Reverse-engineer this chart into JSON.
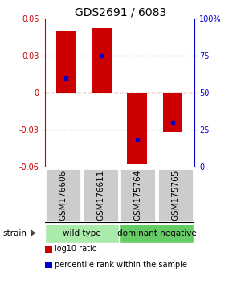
{
  "title": "GDS2691 / 6083",
  "samples": [
    "GSM176606",
    "GSM176611",
    "GSM175764",
    "GSM175765"
  ],
  "bar_values": [
    0.05,
    0.052,
    -0.058,
    -0.032
  ],
  "percentile_pct": [
    60,
    75,
    18,
    30
  ],
  "bar_color": "#cc0000",
  "dot_color": "#0000cc",
  "ylim_left": [
    -0.06,
    0.06
  ],
  "yticks_left": [
    -0.06,
    -0.03,
    0,
    0.03,
    0.06
  ],
  "ytick_labels_left": [
    "-0.06",
    "-0.03",
    "0",
    "0.03",
    "0.06"
  ],
  "yticks_right": [
    0,
    25,
    50,
    75,
    100
  ],
  "ytick_labels_right": [
    "0",
    "25",
    "50",
    "75",
    "100%"
  ],
  "groups": [
    {
      "label": "wild type",
      "samples": [
        0,
        1
      ],
      "color": "#aaeaaa"
    },
    {
      "label": "dominant negative",
      "samples": [
        2,
        3
      ],
      "color": "#66cc66"
    }
  ],
  "legend_items": [
    {
      "color": "#cc0000",
      "marker": "s",
      "label": "log10 ratio"
    },
    {
      "color": "#0000cc",
      "marker": "s",
      "label": "percentile rank within the sample"
    }
  ],
  "hline_zero_color": "#cc0000",
  "hline_dotted_color": "#000000",
  "bar_width": 0.55,
  "sample_box_color": "#cccccc",
  "sample_box_edge": "#ffffff",
  "background_color": "#ffffff",
  "title_fontsize": 10,
  "tick_fontsize": 7,
  "label_fontsize": 7.5
}
